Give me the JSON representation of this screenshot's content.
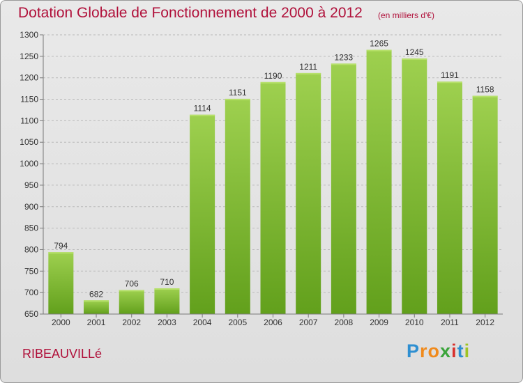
{
  "chart_data": {
    "type": "bar",
    "title": "Dotation Globale de Fonctionnement de 2000 à 2012",
    "subtitle": "(en milliers d'€)",
    "categories": [
      "2000",
      "2001",
      "2002",
      "2003",
      "2004",
      "2005",
      "2006",
      "2007",
      "2008",
      "2009",
      "2010",
      "2011",
      "2012"
    ],
    "values": [
      794,
      682,
      706,
      710,
      1114,
      1151,
      1190,
      1211,
      1233,
      1265,
      1245,
      1191,
      1158
    ],
    "ylim": [
      650,
      1300
    ],
    "yticks": [
      650,
      700,
      750,
      800,
      850,
      900,
      950,
      1000,
      1050,
      1100,
      1150,
      1200,
      1250,
      1300
    ],
    "xlabel": "",
    "ylabel": "",
    "grid": true,
    "bar_color": "#7cbd2c"
  },
  "footer": {
    "town": "RIBEAUVILLé",
    "logo_letters": [
      "P",
      "r",
      "o",
      "x",
      "i",
      "t",
      "i"
    ],
    "logo_colors": [
      "#2e8fd1",
      "#f08a1c",
      "#f08a1c",
      "#3aa43a",
      "#d9302c",
      "#2e8fd1",
      "#9fc424"
    ]
  }
}
